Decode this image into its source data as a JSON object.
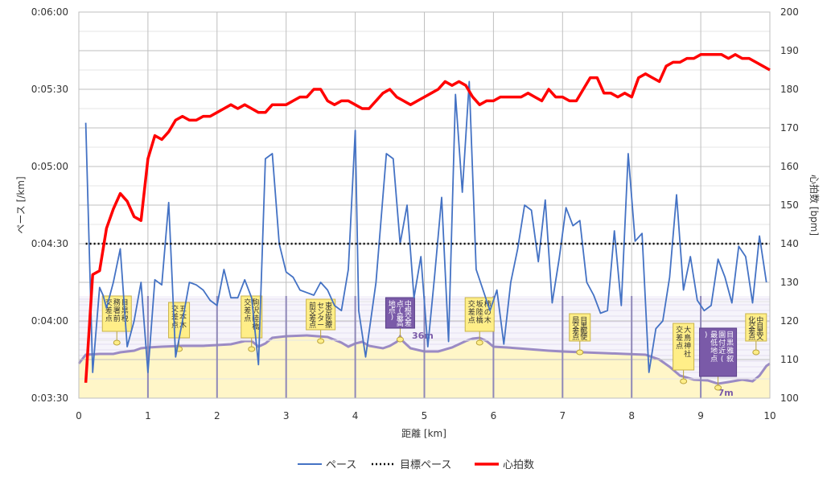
{
  "chart_data": {
    "type": "line",
    "xlabel": "距離 [km]",
    "ylabel_left": "ペース [/km]",
    "ylabel_right": "心拍数 [bpm]",
    "xlim": [
      0,
      10
    ],
    "ylim_pace_seconds": [
      210,
      360
    ],
    "ylim_hr": [
      100,
      200
    ],
    "x_ticks": [
      "0",
      "1",
      "2",
      "3",
      "4",
      "5",
      "6",
      "7",
      "8",
      "9",
      "10"
    ],
    "y_left_ticks": [
      "0:03:30",
      "0:04:00",
      "0:04:30",
      "0:05:00",
      "0:05:30",
      "0:06:00"
    ],
    "y_right_ticks": [
      "100",
      "110",
      "120",
      "130",
      "140",
      "150",
      "160",
      "170",
      "180",
      "190",
      "200"
    ],
    "grid": true,
    "legend_position": "bottom",
    "series": [
      {
        "name": "ペース",
        "color": "#4472c4",
        "x": [
          0.1,
          0.2,
          0.3,
          0.35,
          0.4,
          0.5,
          0.6,
          0.7,
          0.8,
          0.9,
          1.0,
          1.1,
          1.2,
          1.3,
          1.4,
          1.5,
          1.6,
          1.7,
          1.8,
          1.9,
          2.0,
          2.1,
          2.2,
          2.3,
          2.4,
          2.5,
          2.6,
          2.7,
          2.8,
          2.9,
          3.0,
          3.1,
          3.2,
          3.3,
          3.4,
          3.5,
          3.6,
          3.7,
          3.8,
          3.9,
          4.0,
          4.05,
          4.15,
          4.3,
          4.45,
          4.55,
          4.65,
          4.75,
          4.85,
          4.95,
          5.05,
          5.15,
          5.25,
          5.35,
          5.45,
          5.55,
          5.65,
          5.75,
          5.85,
          5.95,
          6.05,
          6.15,
          6.25,
          6.35,
          6.45,
          6.55,
          6.65,
          6.75,
          6.85,
          6.95,
          7.05,
          7.15,
          7.25,
          7.35,
          7.45,
          7.55,
          7.65,
          7.75,
          7.85,
          7.95,
          8.05,
          8.15,
          8.25,
          8.35,
          8.45,
          8.55,
          8.65,
          8.75,
          8.85,
          8.95,
          9.05,
          9.15,
          9.25,
          9.35,
          9.45,
          9.55,
          9.65,
          9.75,
          9.85,
          9.95
        ],
        "values": [
          317,
          220,
          253,
          250,
          245,
          255,
          268,
          230,
          240,
          255,
          220,
          256,
          254,
          286,
          226,
          240,
          255,
          254,
          252,
          248,
          246,
          260,
          249,
          249,
          256,
          249,
          223,
          303,
          305,
          270,
          259,
          257,
          252,
          251,
          250,
          255,
          252,
          246,
          244,
          260,
          314,
          244,
          226,
          255,
          305,
          303,
          270,
          285,
          249,
          265,
          230,
          258,
          288,
          232,
          328,
          290,
          333,
          260,
          252,
          244,
          252,
          231,
          255,
          268,
          285,
          283,
          263,
          287,
          247,
          264,
          284,
          277,
          279,
          255,
          250,
          243,
          244,
          275,
          246,
          305,
          271,
          274,
          220,
          237,
          240,
          257,
          289,
          252,
          265,
          248,
          244,
          246,
          264,
          257,
          247,
          269,
          265,
          247,
          273,
          255
        ],
        "note_y_units": "pace in seconds per km"
      },
      {
        "name": "目標ペース",
        "color": "#000000",
        "x": [
          0.1,
          10
        ],
        "values": [
          270,
          270
        ]
      },
      {
        "name": "心拍数",
        "color": "#ff0000",
        "x": [
          0.1,
          0.2,
          0.3,
          0.4,
          0.5,
          0.6,
          0.7,
          0.8,
          0.9,
          1.0,
          1.1,
          1.2,
          1.3,
          1.4,
          1.5,
          1.6,
          1.7,
          1.8,
          1.9,
          2.0,
          2.1,
          2.2,
          2.3,
          2.4,
          2.5,
          2.6,
          2.7,
          2.8,
          2.9,
          3.0,
          3.1,
          3.2,
          3.3,
          3.4,
          3.5,
          3.6,
          3.7,
          3.8,
          3.9,
          4.0,
          4.1,
          4.2,
          4.3,
          4.4,
          4.5,
          4.6,
          4.7,
          4.8,
          4.9,
          5.0,
          5.1,
          5.2,
          5.3,
          5.4,
          5.5,
          5.6,
          5.7,
          5.8,
          5.9,
          6.0,
          6.1,
          6.2,
          6.3,
          6.4,
          6.5,
          6.6,
          6.7,
          6.8,
          6.9,
          7.0,
          7.1,
          7.2,
          7.3,
          7.4,
          7.5,
          7.6,
          7.7,
          7.8,
          7.9,
          8.0,
          8.1,
          8.2,
          8.3,
          8.4,
          8.5,
          8.6,
          8.7,
          8.8,
          8.9,
          9.0,
          9.1,
          9.2,
          9.3,
          9.4,
          9.5,
          9.6,
          9.7,
          9.8,
          9.9,
          10.0
        ],
        "values": [
          104,
          132,
          133,
          144,
          149,
          153,
          151,
          147,
          146,
          162,
          168,
          167,
          169,
          172,
          173,
          172,
          172,
          173,
          173,
          174,
          175,
          176,
          175,
          176,
          175,
          174,
          174,
          176,
          176,
          176,
          177,
          178,
          178,
          180,
          180,
          177,
          176,
          177,
          177,
          176,
          175,
          175,
          177,
          179,
          180,
          178,
          177,
          176,
          177,
          178,
          179,
          180,
          182,
          181,
          182,
          181,
          178,
          176,
          177,
          177,
          178,
          178,
          178,
          178,
          179,
          178,
          177,
          180,
          178,
          178,
          177,
          177,
          180,
          183,
          183,
          179,
          179,
          178,
          179,
          178,
          183,
          184,
          183,
          182,
          186,
          187,
          187,
          188,
          188,
          189,
          189,
          189,
          189,
          188,
          189,
          188,
          188,
          187,
          186,
          185
        ],
        "axis": "right"
      }
    ],
    "elevation_labels": [
      "36m",
      "7m"
    ],
    "landmarks": [
      {
        "label": "目黒税務署前交差点",
        "km": 0.55,
        "dark": false
      },
      {
        "label": "五本木交差点",
        "km": 1.45,
        "dark": false
      },
      {
        "label": "駒沢陸橋交差点",
        "km": 2.5,
        "dark": false
      },
      {
        "label": "東京医療センター前交差点",
        "km": 3.5,
        "dark": false
      },
      {
        "label": "中根交差点(最高地点)",
        "km": 4.65,
        "dark": true
      },
      {
        "label": "柿の木坂陸橋交差点",
        "km": 5.8,
        "dark": false
      },
      {
        "label": "目黒郵便局交差点",
        "km": 7.25,
        "dark": false
      },
      {
        "label": "大鳥神社交差点",
        "km": 8.75,
        "dark": false
      },
      {
        "label": "目黒雅叙園付近(最低地点)",
        "km": 9.25,
        "dark": true
      },
      {
        "label": "中目黒文化交差点",
        "km": 9.8,
        "dark": false
      }
    ],
    "colors": {
      "pace": "#4472c4",
      "target": "#000000",
      "hr": "#ff0000",
      "elevation_line": "#9b8bc4",
      "elevation_fill": "#fff6c8",
      "landmark_box": "#ffee88",
      "landmark_dark": "#7a5aa8",
      "grid": "#bfbfbf"
    }
  }
}
